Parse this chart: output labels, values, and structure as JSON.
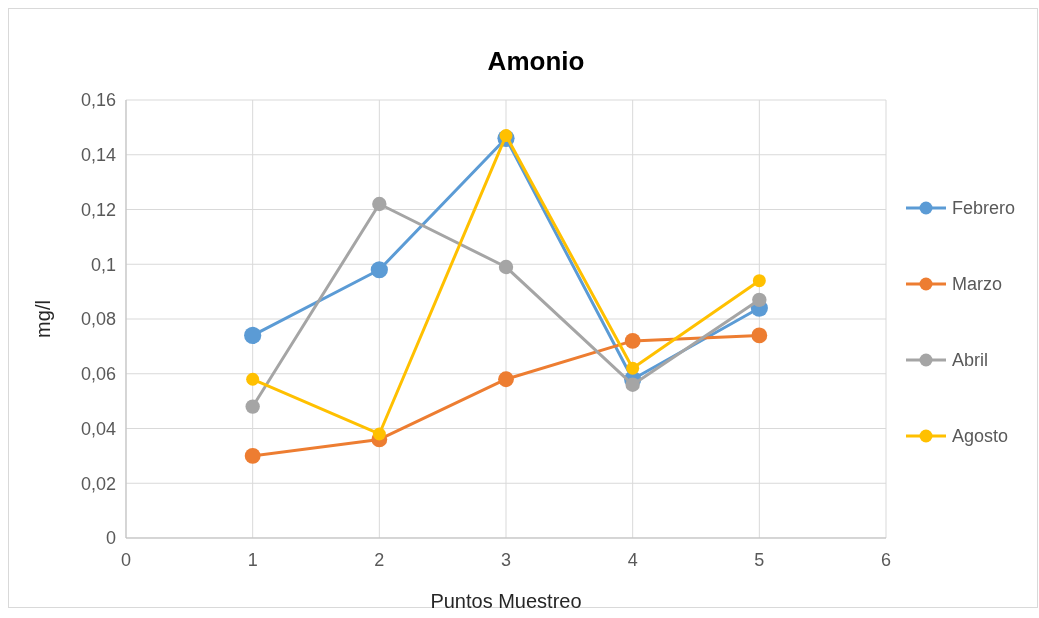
{
  "chart_data": {
    "type": "line",
    "title": "Amonio",
    "xlabel": "Puntos Muestreo",
    "ylabel": "mg/l",
    "x": [
      1,
      2,
      3,
      4,
      5
    ],
    "series": [
      {
        "name": "Febrero",
        "color": "#5b9bd5",
        "values": [
          0.074,
          0.098,
          0.146,
          0.058,
          0.084
        ]
      },
      {
        "name": "Marzo",
        "color": "#ed7d31",
        "values": [
          0.03,
          0.036,
          0.058,
          0.072,
          0.074
        ]
      },
      {
        "name": "Abril",
        "color": "#a5a5a5",
        "values": [
          0.048,
          0.122,
          0.099,
          0.056,
          0.087
        ]
      },
      {
        "name": "Agosto",
        "color": "#ffc000",
        "values": [
          0.058,
          0.038,
          0.147,
          0.062,
          0.094
        ]
      }
    ],
    "xlim": [
      0,
      6
    ],
    "xticks": [
      0,
      1,
      2,
      3,
      4,
      5,
      6
    ],
    "ylim": [
      0,
      0.16
    ],
    "yticks": [
      0,
      {
        "value": 0.02,
        "label": "0,02"
      },
      {
        "value": 0.04,
        "label": "0,04"
      },
      {
        "value": 0.06,
        "label": "0,06"
      },
      {
        "value": 0.08,
        "label": "0,08"
      },
      {
        "value": 0.1,
        "label": "0,1"
      },
      {
        "value": 0.12,
        "label": "0,12"
      },
      {
        "value": 0.14,
        "label": "0,14"
      },
      {
        "value": 0.16,
        "label": "0,16"
      }
    ],
    "grid": true,
    "legend": "right",
    "marker": "circle",
    "line_style": "solid"
  }
}
